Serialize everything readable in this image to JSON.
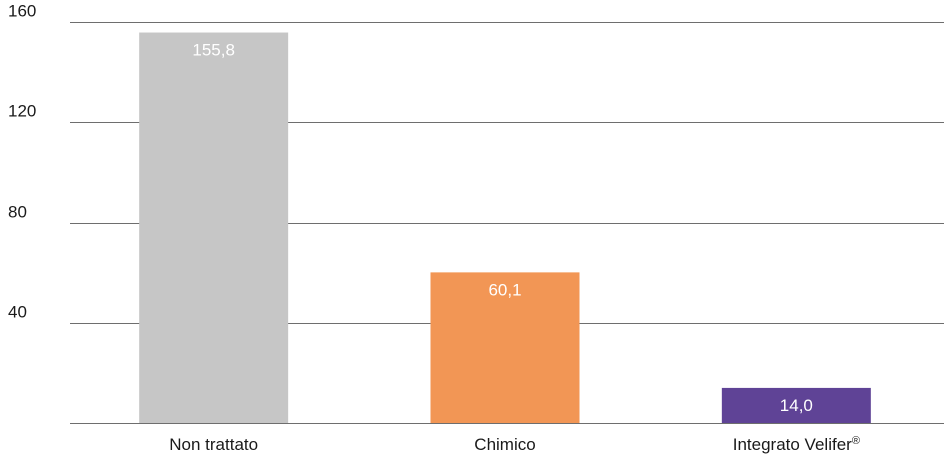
{
  "chart_data": {
    "type": "bar",
    "categories": [
      "Non trattato",
      "Chimico",
      "Integrato Velifer®"
    ],
    "values": [
      155.8,
      60.1,
      14.0
    ],
    "value_labels": [
      "155,8",
      "60,1",
      "14,0"
    ],
    "bar_colors": [
      "#c6c6c6",
      "#f29655",
      "#5f4396"
    ],
    "ylim": [
      0,
      160
    ],
    "yticks": [
      40,
      80,
      120,
      160
    ],
    "ytick_labels": [
      "40",
      "80",
      "120",
      "160"
    ],
    "grid": true,
    "title": "",
    "xlabel": "",
    "ylabel": ""
  }
}
